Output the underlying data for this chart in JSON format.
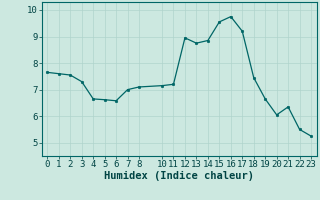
{
  "x": [
    0,
    1,
    2,
    3,
    4,
    5,
    6,
    7,
    8,
    10,
    11,
    12,
    13,
    14,
    15,
    16,
    17,
    18,
    19,
    20,
    21,
    22,
    23
  ],
  "y": [
    7.65,
    7.6,
    7.55,
    7.3,
    6.65,
    6.62,
    6.58,
    7.0,
    7.1,
    7.15,
    7.2,
    8.95,
    8.75,
    8.85,
    9.55,
    9.75,
    9.2,
    7.45,
    6.65,
    6.05,
    6.35,
    5.5,
    5.25
  ],
  "xlabel": "Humidex (Indice chaleur)",
  "xlim": [
    -0.5,
    23.5
  ],
  "ylim": [
    4.5,
    10.3
  ],
  "xticks": [
    0,
    1,
    2,
    3,
    4,
    5,
    6,
    7,
    8,
    10,
    11,
    12,
    13,
    14,
    15,
    16,
    17,
    18,
    19,
    20,
    21,
    22,
    23
  ],
  "yticks": [
    5,
    6,
    7,
    8,
    9,
    10
  ],
  "bg_color": "#cce8e0",
  "grid_color": "#b0d4cc",
  "line_color": "#006666",
  "marker_color": "#006666",
  "xlabel_fontsize": 7.5,
  "tick_fontsize": 6.5,
  "xlabel_color": "#004444",
  "tick_color": "#004444",
  "spine_color": "#006666"
}
